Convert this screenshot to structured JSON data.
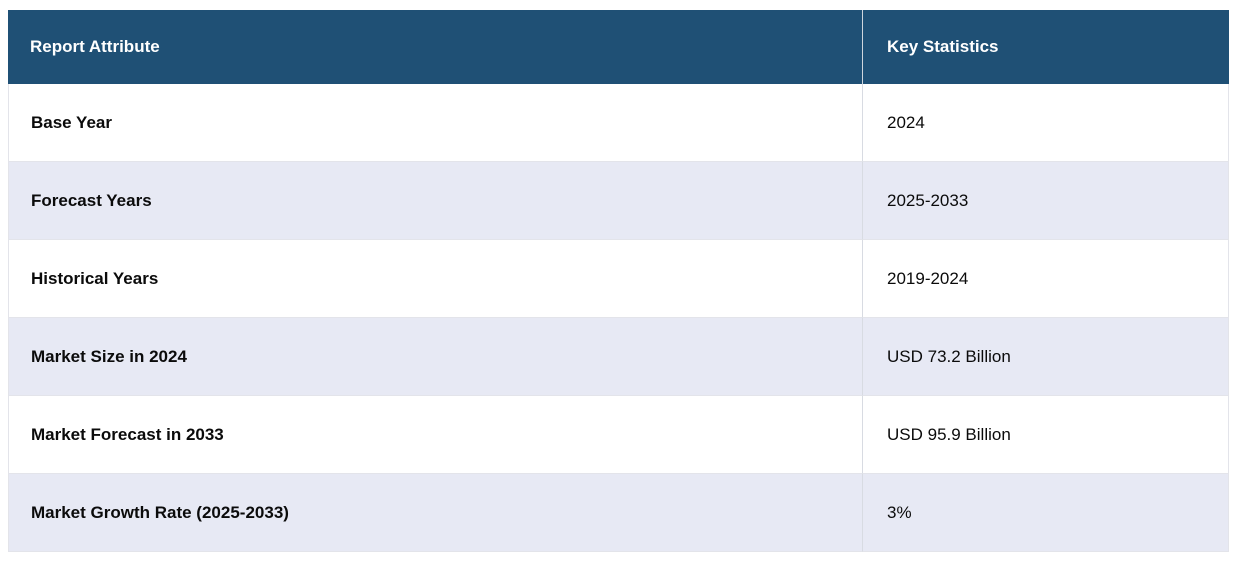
{
  "table": {
    "columns": [
      {
        "label": "Report Attribute"
      },
      {
        "label": "Key Statistics"
      }
    ],
    "rows": [
      {
        "attribute": "Base Year",
        "value": "2024"
      },
      {
        "attribute": "Forecast Years",
        "value": "2025-2033"
      },
      {
        "attribute": "Historical Years",
        "value": "2019-2024"
      },
      {
        "attribute": "Market Size in 2024",
        "value": "USD 73.2 Billion"
      },
      {
        "attribute": "Market Forecast in 2033",
        "value": "USD 95.9 Billion"
      },
      {
        "attribute": "Market Growth Rate (2025-2033)",
        "value": "3%"
      }
    ],
    "colors": {
      "header_bg": "#1f5075",
      "header_text": "#ffffff",
      "row_bg": "#ffffff",
      "row_alt_bg": "#e7e9f4",
      "divider": "#d8dbe2",
      "row_border": "#e3e4ea",
      "body_text": "#0b0b0b"
    }
  }
}
